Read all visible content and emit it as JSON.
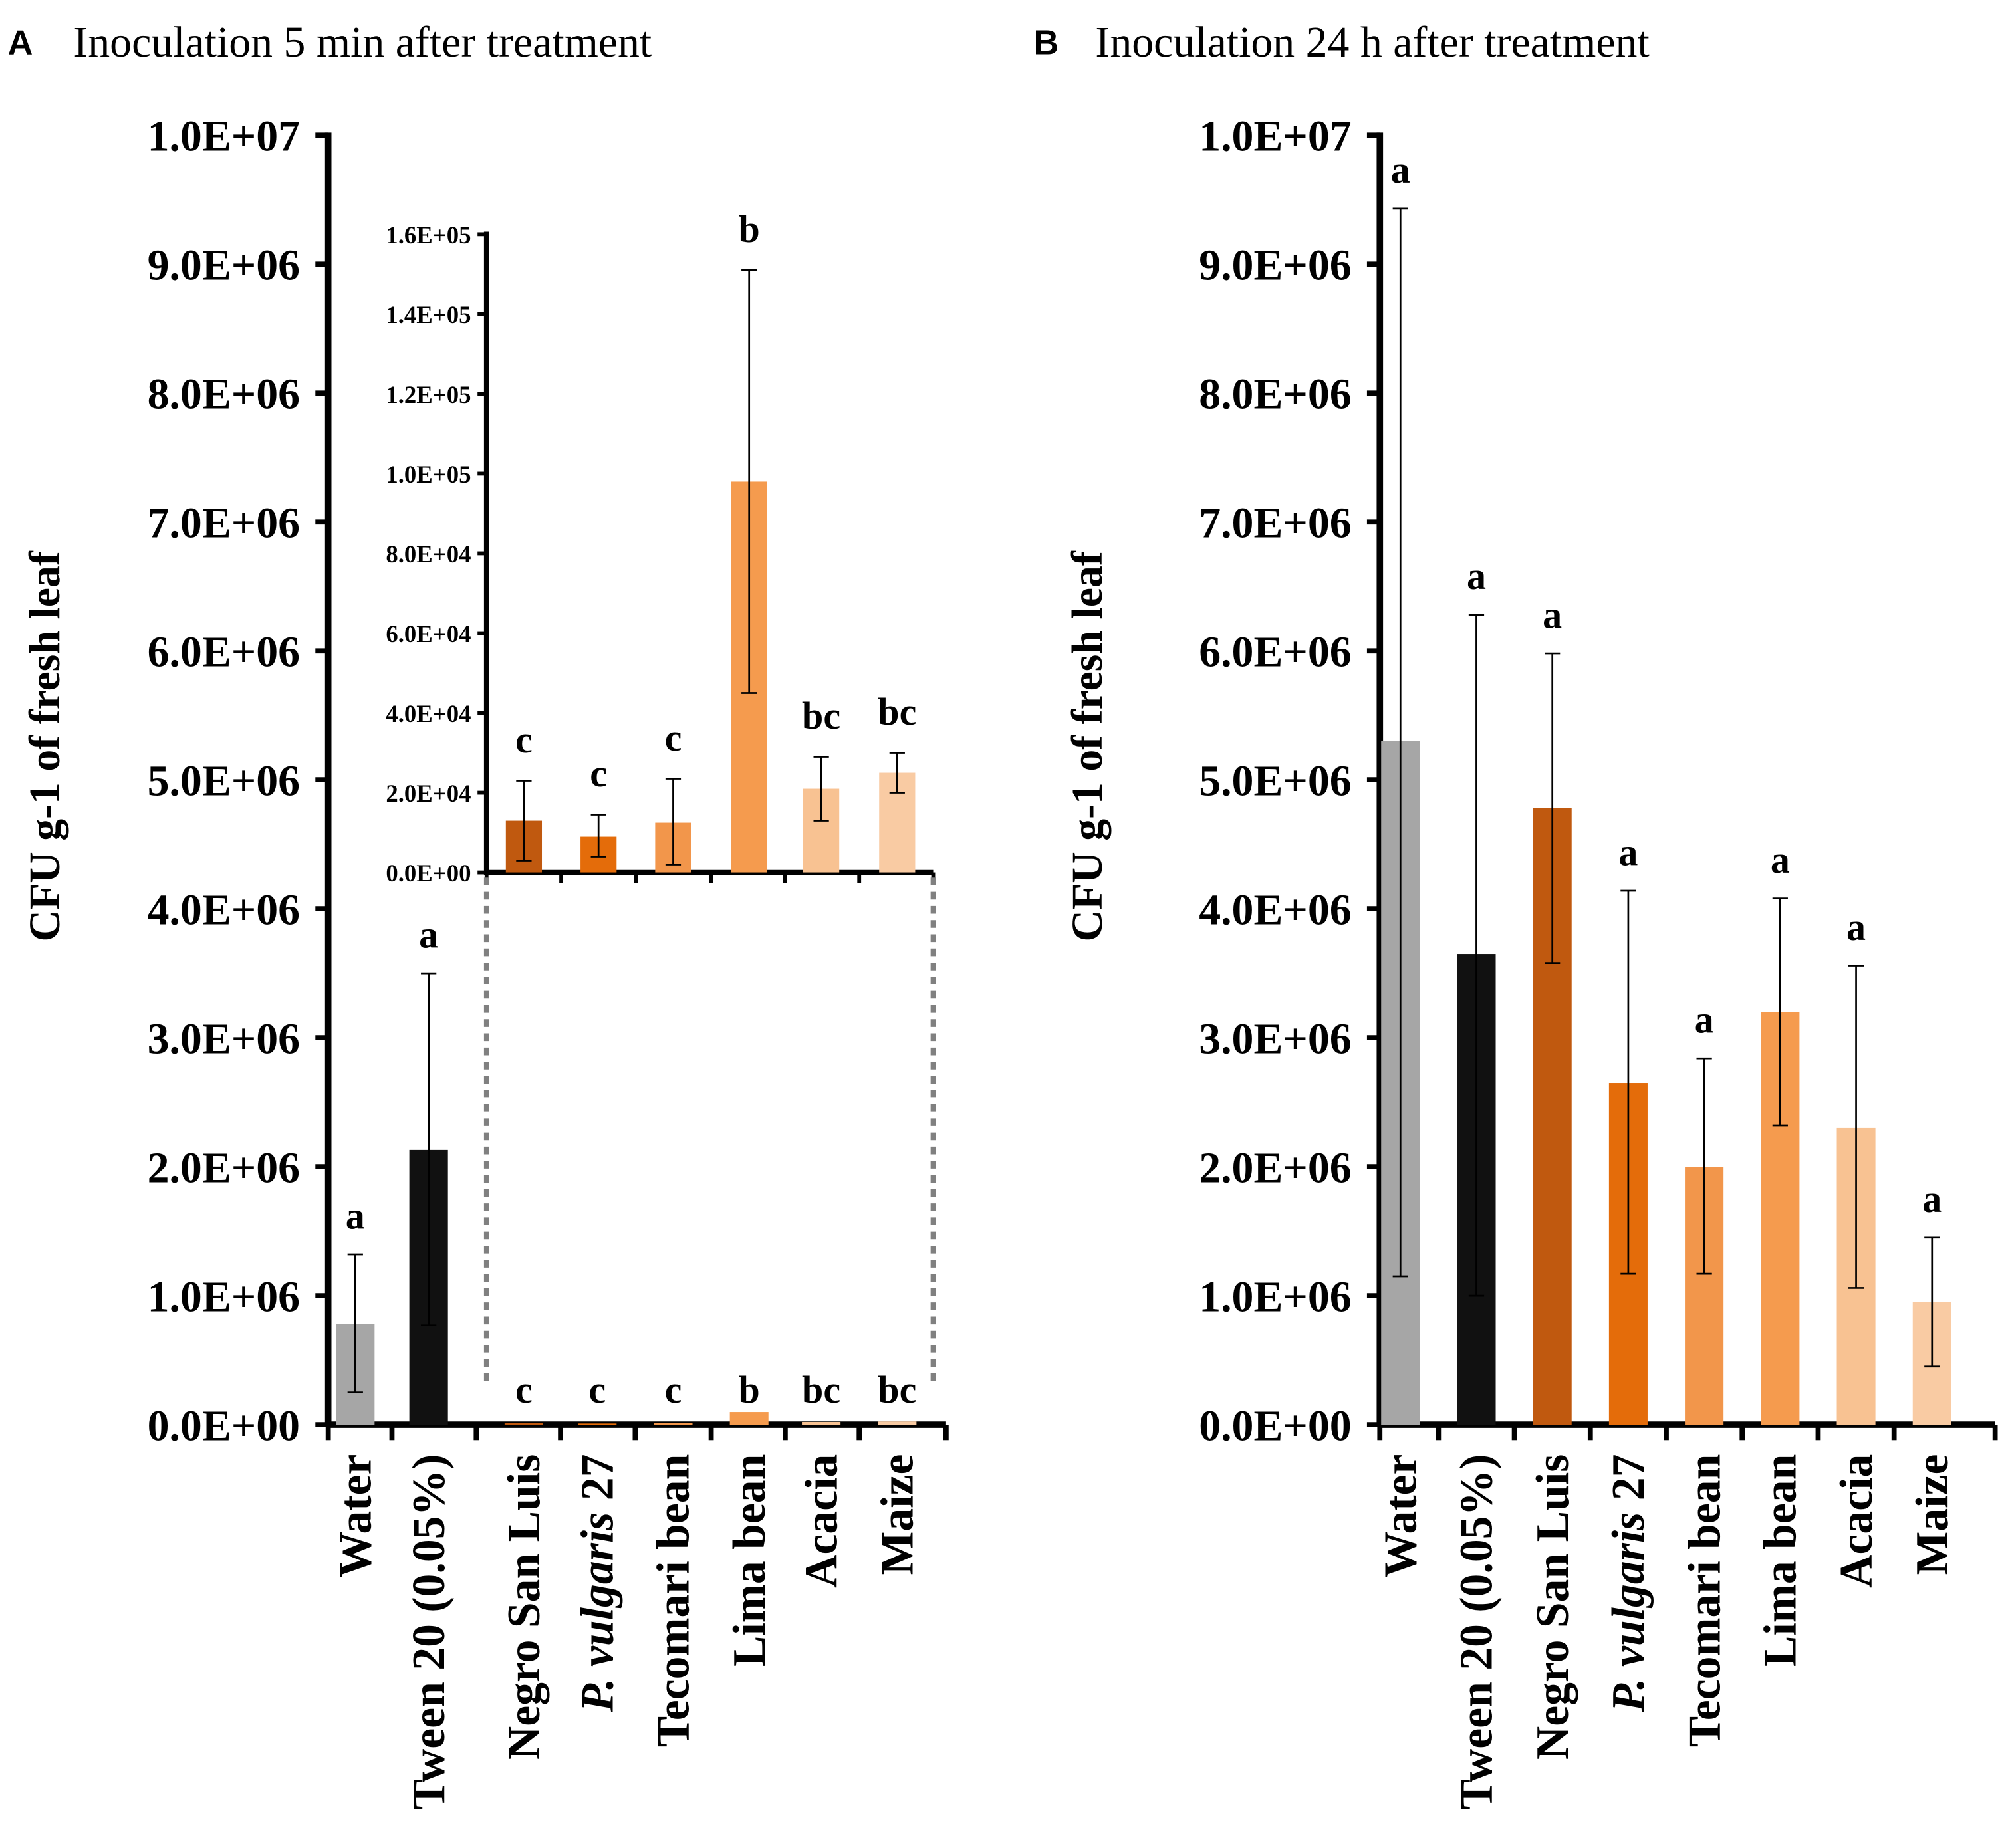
{
  "chart_data": [
    {
      "type": "bar",
      "panel_label": "A",
      "title": "Inoculation 5 min after treatment",
      "ylabel": "CFU g-1 of fresh leaf",
      "xlabel": "",
      "ylim": [
        0,
        10000000
      ],
      "yticks": [
        "0.0E+00",
        "1.0E+06",
        "2.0E+06",
        "3.0E+06",
        "4.0E+06",
        "5.0E+06",
        "6.0E+06",
        "7.0E+06",
        "8.0E+06",
        "9.0E+06",
        "1.0E+07"
      ],
      "categories": [
        "Water",
        "Tween 20 (0.05%)",
        "Negro San Luis",
        "P. vulgaris 27",
        "Tecomari bean",
        "Lima bean",
        "Acacia",
        "Maize"
      ],
      "category_parts": [
        [
          "Water",
          ""
        ],
        [
          "Tween 20 (0.05%)",
          ""
        ],
        [
          "Negro San Luis",
          ""
        ],
        [
          "P. vulgaris",
          " 27"
        ],
        [
          "Tecomari bean",
          ""
        ],
        [
          "Lima bean",
          ""
        ],
        [
          "Acacia",
          ""
        ],
        [
          "Maize",
          ""
        ]
      ],
      "values": [
        780000,
        2130000,
        13000,
        9000,
        12500,
        98000,
        21000,
        25000
      ],
      "error_low": [
        250000,
        770000,
        3000,
        4000,
        2000,
        45000,
        13000,
        20000
      ],
      "error_high": [
        1320000,
        3500000,
        23000,
        14500,
        23500,
        151000,
        29000,
        30000
      ],
      "letters": [
        "a",
        "a",
        "c",
        "c",
        "c",
        "b",
        "bc",
        "bc"
      ],
      "colors": [
        "#a6a6a6",
        "#111111",
        "#c0590f",
        "#e46c0a",
        "#f2964b",
        "#f59b4e",
        "#f8c292",
        "#f9cba3"
      ],
      "inset": {
        "ylim": [
          0,
          160000
        ],
        "yticks": [
          "0.0E+00",
          "2.0E+04",
          "4.0E+04",
          "6.0E+04",
          "8.0E+04",
          "1.0E+05",
          "1.2E+05",
          "1.4E+05",
          "1.6E+05"
        ],
        "categories": [
          "Negro San Luis",
          "P. vulgaris 27",
          "Tecomari bean",
          "Lima bean",
          "Acacia",
          "Maize"
        ],
        "values": [
          13000,
          9000,
          12500,
          98000,
          21000,
          25000
        ],
        "error_low": [
          3000,
          4000,
          2000,
          45000,
          13000,
          20000
        ],
        "error_high": [
          23000,
          14500,
          23500,
          151000,
          29000,
          30000
        ],
        "letters": [
          "c",
          "c",
          "c",
          "b",
          "bc",
          "bc"
        ]
      },
      "grid": false
    },
    {
      "type": "bar",
      "panel_label": "B",
      "title": "Inoculation 24 h after treatment",
      "ylabel": "CFU g-1 of fresh leaf",
      "xlabel": "",
      "ylim": [
        0,
        10000000
      ],
      "yticks": [
        "0.0E+00",
        "1.0E+06",
        "2.0E+06",
        "3.0E+06",
        "4.0E+06",
        "5.0E+06",
        "6.0E+06",
        "7.0E+06",
        "8.0E+06",
        "9.0E+06",
        "1.0E+07"
      ],
      "categories": [
        "Water",
        "Tween 20 (0.05%)",
        "Negro San Luis",
        "P. vulgaris 27",
        "Tecomari bean",
        "Lima bean",
        "Acacia",
        "Maize"
      ],
      "category_parts": [
        [
          "Water",
          ""
        ],
        [
          "Tween 20 (0.05%)",
          ""
        ],
        [
          "Negro San Luis",
          ""
        ],
        [
          "P. vulgaris",
          " 27"
        ],
        [
          "Tecomari bean",
          ""
        ],
        [
          "Lima bean",
          ""
        ],
        [
          "Acacia",
          ""
        ],
        [
          "Maize",
          ""
        ]
      ],
      "values": [
        5300000,
        3650000,
        4780000,
        2650000,
        2000000,
        3200000,
        2300000,
        950000
      ],
      "error_low": [
        1150000,
        1000000,
        3580000,
        1170000,
        1170000,
        2320000,
        1060000,
        450000
      ],
      "error_high": [
        9430000,
        6280000,
        5980000,
        4140000,
        2840000,
        4080000,
        3560000,
        1450000
      ],
      "letters": [
        "a",
        "a",
        "a",
        "a",
        "a",
        "a",
        "a",
        "a"
      ],
      "colors": [
        "#a6a6a6",
        "#111111",
        "#c0590f",
        "#e46c0a",
        "#f2964b",
        "#f59b4e",
        "#f8c292",
        "#f9cba3"
      ],
      "grid": false
    }
  ]
}
